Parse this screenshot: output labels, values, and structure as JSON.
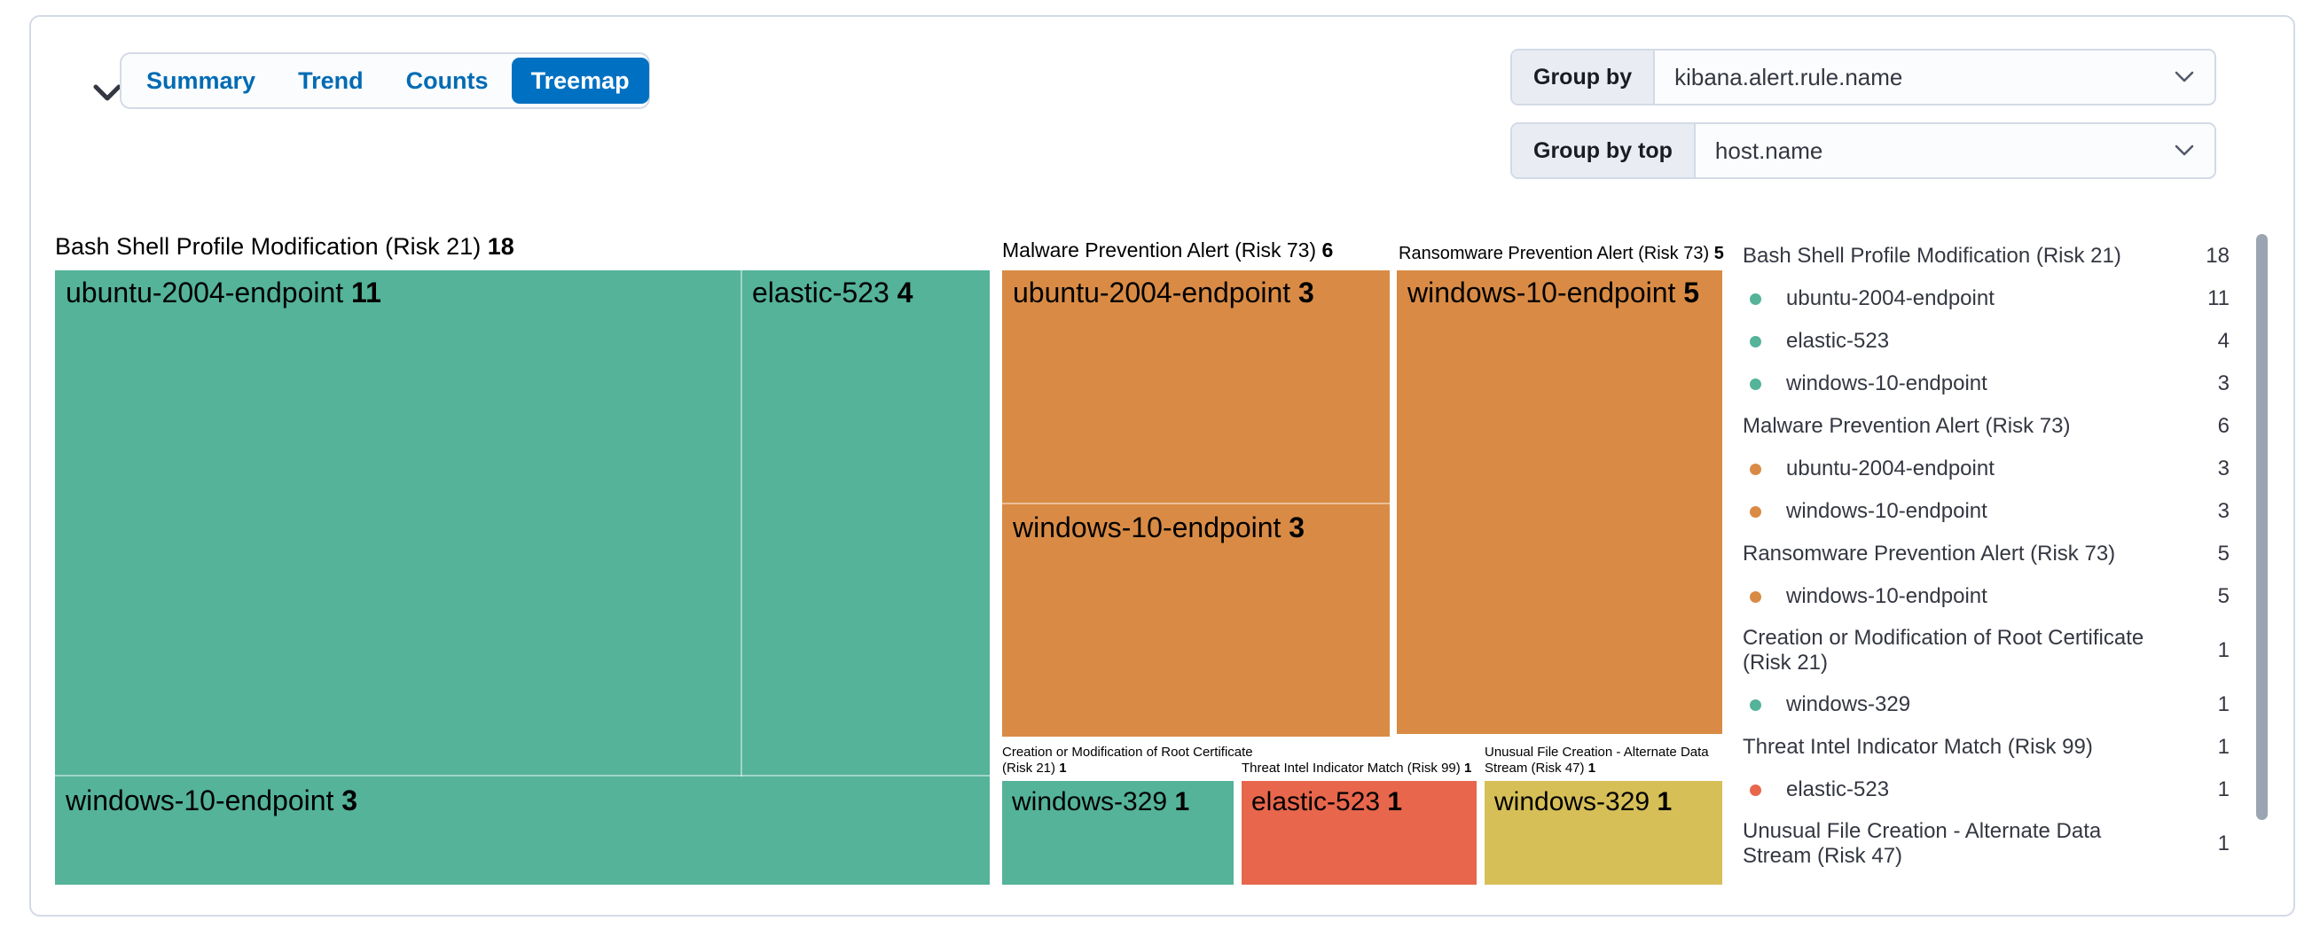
{
  "panel": {
    "collapse_icon": "chevron-down",
    "tabs": [
      {
        "label": "Summary",
        "active": false
      },
      {
        "label": "Trend",
        "active": false
      },
      {
        "label": "Counts",
        "active": false
      },
      {
        "label": "Treemap",
        "active": true
      }
    ],
    "group_by": {
      "label": "Group by",
      "value": "kibana.alert.rule.name"
    },
    "group_by_top": {
      "label": "Group by top",
      "value": "host.name"
    }
  },
  "colors": {
    "teal": "#54B399",
    "orange": "#D98B45",
    "red": "#E7664C",
    "yellow": "#D6BF57",
    "active_tab": "#0071C2",
    "link_blue": "#006BB4",
    "border": "#d3dae6",
    "text": "#343741"
  },
  "chart_data": {
    "type": "treemap",
    "group_field": "kibana.alert.rule.name",
    "child_field": "host.name",
    "legend_position": "right",
    "legend_visible_rows": 14,
    "groups": [
      {
        "label": "Bash Shell Profile Modification (Risk 21)",
        "value": 18,
        "color": "teal",
        "children": [
          {
            "label": "ubuntu-2004-endpoint",
            "value": 11
          },
          {
            "label": "elastic-523",
            "value": 4
          },
          {
            "label": "windows-10-endpoint",
            "value": 3
          }
        ]
      },
      {
        "label": "Malware Prevention Alert (Risk 73)",
        "value": 6,
        "color": "orange",
        "children": [
          {
            "label": "ubuntu-2004-endpoint",
            "value": 3
          },
          {
            "label": "windows-10-endpoint",
            "value": 3
          }
        ]
      },
      {
        "label": "Ransomware Prevention Alert (Risk 73)",
        "value": 5,
        "color": "orange",
        "children": [
          {
            "label": "windows-10-endpoint",
            "value": 5
          }
        ]
      },
      {
        "label": "Creation or Modification of Root Certificate (Risk 21)",
        "value": 1,
        "color": "teal",
        "children": [
          {
            "label": "windows-329",
            "value": 1
          }
        ]
      },
      {
        "label": "Threat Intel Indicator Match (Risk 99)",
        "value": 1,
        "color": "red",
        "children": [
          {
            "label": "elastic-523",
            "value": 1
          }
        ]
      },
      {
        "label": "Unusual File Creation - Alternate Data Stream (Risk 47)",
        "value": 1,
        "color": "yellow",
        "children": [
          {
            "label": "windows-329",
            "value": 1
          }
        ]
      }
    ]
  }
}
